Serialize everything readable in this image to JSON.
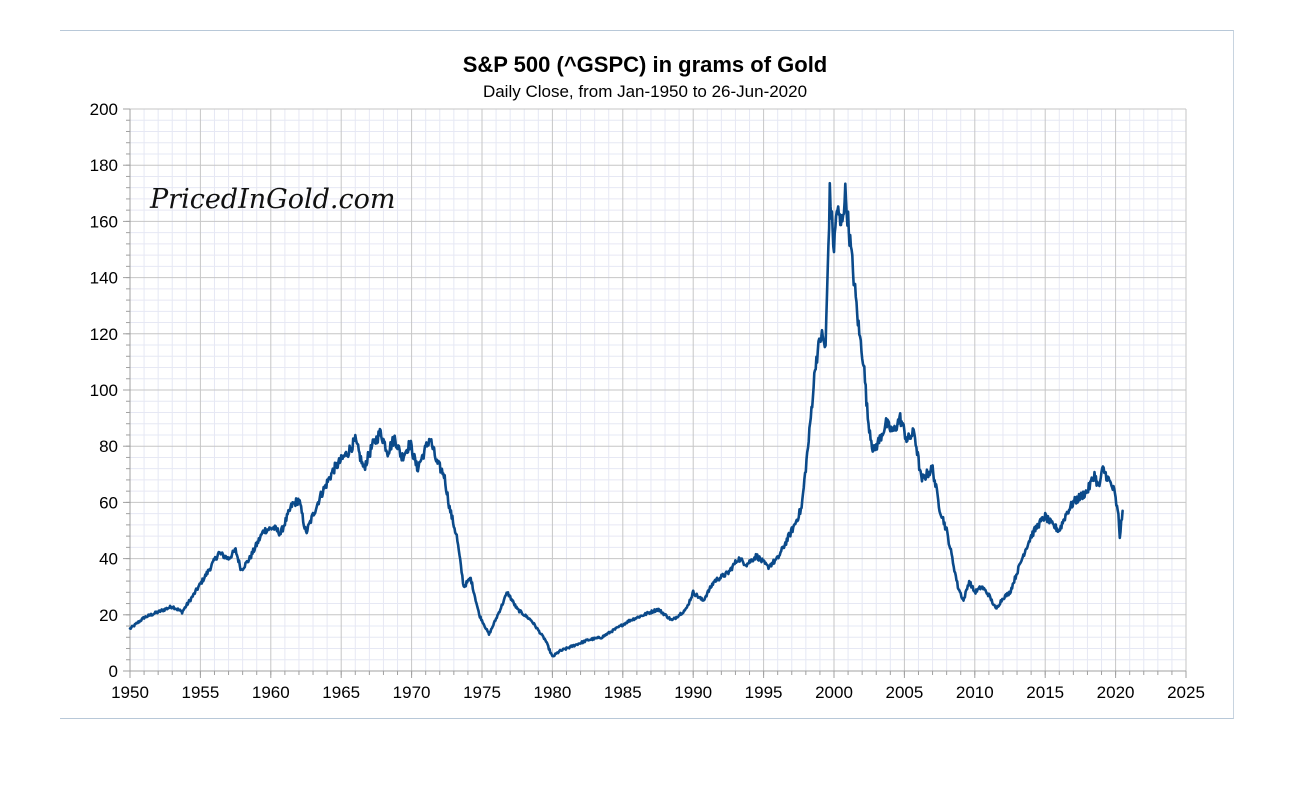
{
  "chart_data": {
    "type": "line",
    "title": "S&P 500 (^GSPC) in grams of Gold",
    "subtitle": "Daily Close, from Jan-1950 to 26-Jun-2020",
    "watermark": "PricedInGold.com",
    "xlabel": "",
    "ylabel": "",
    "xlim": [
      1950,
      2025
    ],
    "ylim": [
      0,
      200
    ],
    "x_ticks": [
      1950,
      1955,
      1960,
      1965,
      1970,
      1975,
      1980,
      1985,
      1990,
      1995,
      2000,
      2005,
      2010,
      2015,
      2020,
      2025
    ],
    "y_ticks": [
      0,
      20,
      40,
      60,
      80,
      100,
      120,
      140,
      160,
      180,
      200
    ],
    "grid": true,
    "legend": "none",
    "line_color": "#0b4a8a",
    "series": [
      {
        "x": [
          1950.0,
          1951.0,
          1952.0,
          1953.0,
          1953.7,
          1954.5,
          1955.5,
          1956.3,
          1957.0,
          1957.5,
          1957.9,
          1958.5,
          1959.5,
          1960.2,
          1960.7,
          1961.5,
          1962.0,
          1962.5,
          1963.5,
          1964.5,
          1965.5,
          1966.0,
          1966.6,
          1967.2,
          1967.8,
          1968.3,
          1968.8,
          1969.3,
          1969.9,
          1970.4,
          1970.9,
          1971.3,
          1971.8,
          1972.3,
          1972.7,
          1973.2,
          1973.7,
          1974.2,
          1974.8,
          1975.5,
          1976.3,
          1976.8,
          1977.5,
          1978.5,
          1979.5,
          1980.0,
          1980.5,
          1981.5,
          1982.5,
          1983.5,
          1984.5,
          1985.5,
          1986.5,
          1987.5,
          1988.5,
          1989.5,
          1990.0,
          1990.7,
          1991.5,
          1992.5,
          1993.2,
          1993.8,
          1994.5,
          1995.3,
          1996.0,
          1996.7,
          1997.2,
          1997.7,
          1998.2,
          1998.7,
          1999.1,
          1999.4,
          1999.7,
          2000.0,
          2000.2,
          2000.5,
          2000.8,
          2001.1,
          2001.4,
          2001.8,
          2002.1,
          2002.4,
          2002.8,
          2003.2,
          2003.7,
          2004.2,
          2004.7,
          2005.2,
          2005.7,
          2006.2,
          2006.6,
          2007.0,
          2007.5,
          2008.0,
          2008.4,
          2008.8,
          2009.2,
          2009.6,
          2010.0,
          2010.5,
          2011.0,
          2011.5,
          2012.0,
          2012.5,
          2013.0,
          2013.5,
          2014.0,
          2014.5,
          2015.0,
          2015.5,
          2016.0,
          2016.5,
          2017.0,
          2017.5,
          2018.0,
          2018.5,
          2018.8,
          2019.1,
          2019.5,
          2019.9,
          2020.2,
          2020.3,
          2020.5
        ],
        "y": [
          15,
          19,
          21,
          23,
          21,
          27,
          35,
          42,
          40,
          43,
          36,
          40,
          50,
          51,
          49,
          59,
          61,
          49,
          62,
          72,
          78,
          82,
          72,
          80,
          85,
          78,
          83,
          76,
          81,
          72,
          78,
          83,
          74,
          70,
          58,
          48,
          30,
          33,
          20,
          13,
          22,
          28,
          22,
          18,
          11,
          5,
          7,
          9,
          11,
          12,
          15,
          18,
          20,
          22,
          18,
          22,
          28,
          25,
          32,
          35,
          40,
          38,
          41,
          37,
          40,
          47,
          52,
          58,
          82,
          110,
          120,
          115,
          170,
          150,
          165,
          158,
          170,
          155,
          140,
          120,
          110,
          90,
          78,
          82,
          88,
          85,
          90,
          82,
          85,
          68,
          70,
          72,
          58,
          50,
          40,
          30,
          25,
          32,
          28,
          30,
          27,
          22,
          26,
          28,
          35,
          42,
          48,
          52,
          55,
          52,
          50,
          56,
          60,
          62,
          64,
          70,
          65,
          72,
          68,
          64,
          55,
          48,
          57
        ]
      }
    ]
  }
}
